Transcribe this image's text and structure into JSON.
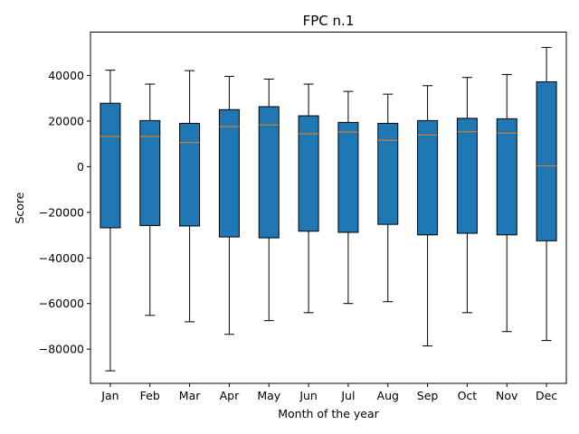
{
  "chart_data": {
    "type": "boxplot",
    "title": "FPC n.1",
    "xlabel": "Month of the year",
    "ylabel": "Score",
    "ylim": [
      -95000,
      59000
    ],
    "yticks": [
      -80000,
      -60000,
      -40000,
      -20000,
      0,
      20000,
      40000
    ],
    "ytick_labels": [
      "−80000",
      "−60000",
      "−40000",
      "−20000",
      "0",
      "20000",
      "40000"
    ],
    "categories": [
      "Jan",
      "Feb",
      "Mar",
      "Apr",
      "May",
      "Jun",
      "Jul",
      "Aug",
      "Sep",
      "Oct",
      "Nov",
      "Dec"
    ],
    "boxes": [
      {
        "whisker_low": -89500,
        "q1": -26800,
        "median": 13200,
        "q3": 27800,
        "whisker_high": 42300
      },
      {
        "whisker_low": -65200,
        "q1": -25800,
        "median": 13200,
        "q3": 20200,
        "whisker_high": 36200
      },
      {
        "whisker_low": -68000,
        "q1": -26000,
        "median": 10600,
        "q3": 19000,
        "whisker_high": 42100
      },
      {
        "whisker_low": -73500,
        "q1": -30800,
        "median": 17600,
        "q3": 25000,
        "whisker_high": 39600
      },
      {
        "whisker_low": -67500,
        "q1": -31200,
        "median": 18300,
        "q3": 26300,
        "whisker_high": 38400
      },
      {
        "whisker_low": -64000,
        "q1": -28300,
        "median": 14400,
        "q3": 22300,
        "whisker_high": 36200
      },
      {
        "whisker_low": -60000,
        "q1": -28800,
        "median": 15200,
        "q3": 19400,
        "whisker_high": 33000
      },
      {
        "whisker_low": -59200,
        "q1": -25300,
        "median": 11600,
        "q3": 19000,
        "whisker_high": 31800
      },
      {
        "whisker_low": -78600,
        "q1": -29900,
        "median": 13900,
        "q3": 20200,
        "whisker_high": 35500
      },
      {
        "whisker_low": -64000,
        "q1": -29200,
        "median": 15300,
        "q3": 21200,
        "whisker_high": 39100
      },
      {
        "whisker_low": -72300,
        "q1": -29900,
        "median": 14700,
        "q3": 21000,
        "whisker_high": 40400
      },
      {
        "whisker_low": -76200,
        "q1": -32500,
        "median": 300,
        "q3": 37200,
        "whisker_high": 52300
      }
    ],
    "box_color": "#1f77b4",
    "median_color": "#ff7f0e",
    "grid": false,
    "legend": "none"
  }
}
